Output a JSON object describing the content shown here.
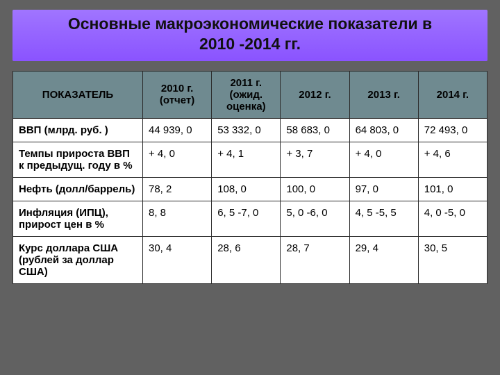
{
  "title_line1": "Основные макроэкономические показатели в",
  "title_line2": "2010 -2014 гг.",
  "colors": {
    "slide_bg": "#616161",
    "title_bg": "#8a53ff",
    "header_bg": "#6f8a90",
    "cell_bg": "#ffffff",
    "border": "#2b2b2b",
    "title_text": "#111111"
  },
  "table": {
    "type": "table",
    "fontsize_header": 15,
    "fontsize_body": 15,
    "columns": [
      "ПОКАЗАТЕЛЬ",
      "2010 г. (отчет)",
      "2011 г. (ожид. оценка)",
      "2012 г.",
      "2013 г.",
      "2014 г."
    ],
    "rows": [
      {
        "label": "ВВП (млрд. руб. )",
        "cells": [
          "44 939, 0",
          "53 332, 0",
          "58 683, 0",
          "64 803, 0",
          "72 493, 0"
        ]
      },
      {
        "label": "Темпы прироста ВВП к предыдущ. году в %",
        "cells": [
          "+ 4, 0",
          "+ 4, 1",
          "+ 3, 7",
          "+ 4, 0",
          "+ 4, 6"
        ]
      },
      {
        "label": "Нефть (долл/баррель)",
        "cells": [
          "78, 2",
          "108, 0",
          "100, 0",
          "97, 0",
          "101, 0"
        ]
      },
      {
        "label": "Инфляция (ИПЦ), прирост цен в %",
        "cells": [
          "8, 8",
          "6, 5 -7, 0",
          "5, 0 -6, 0",
          "4, 5 -5, 5",
          "4, 0 -5, 0"
        ]
      },
      {
        "label": "Курс доллара США (рублей за доллар США)",
        "cells": [
          "30, 4",
          "28, 6",
          "28, 7",
          "29, 4",
          "30, 5"
        ]
      }
    ]
  }
}
